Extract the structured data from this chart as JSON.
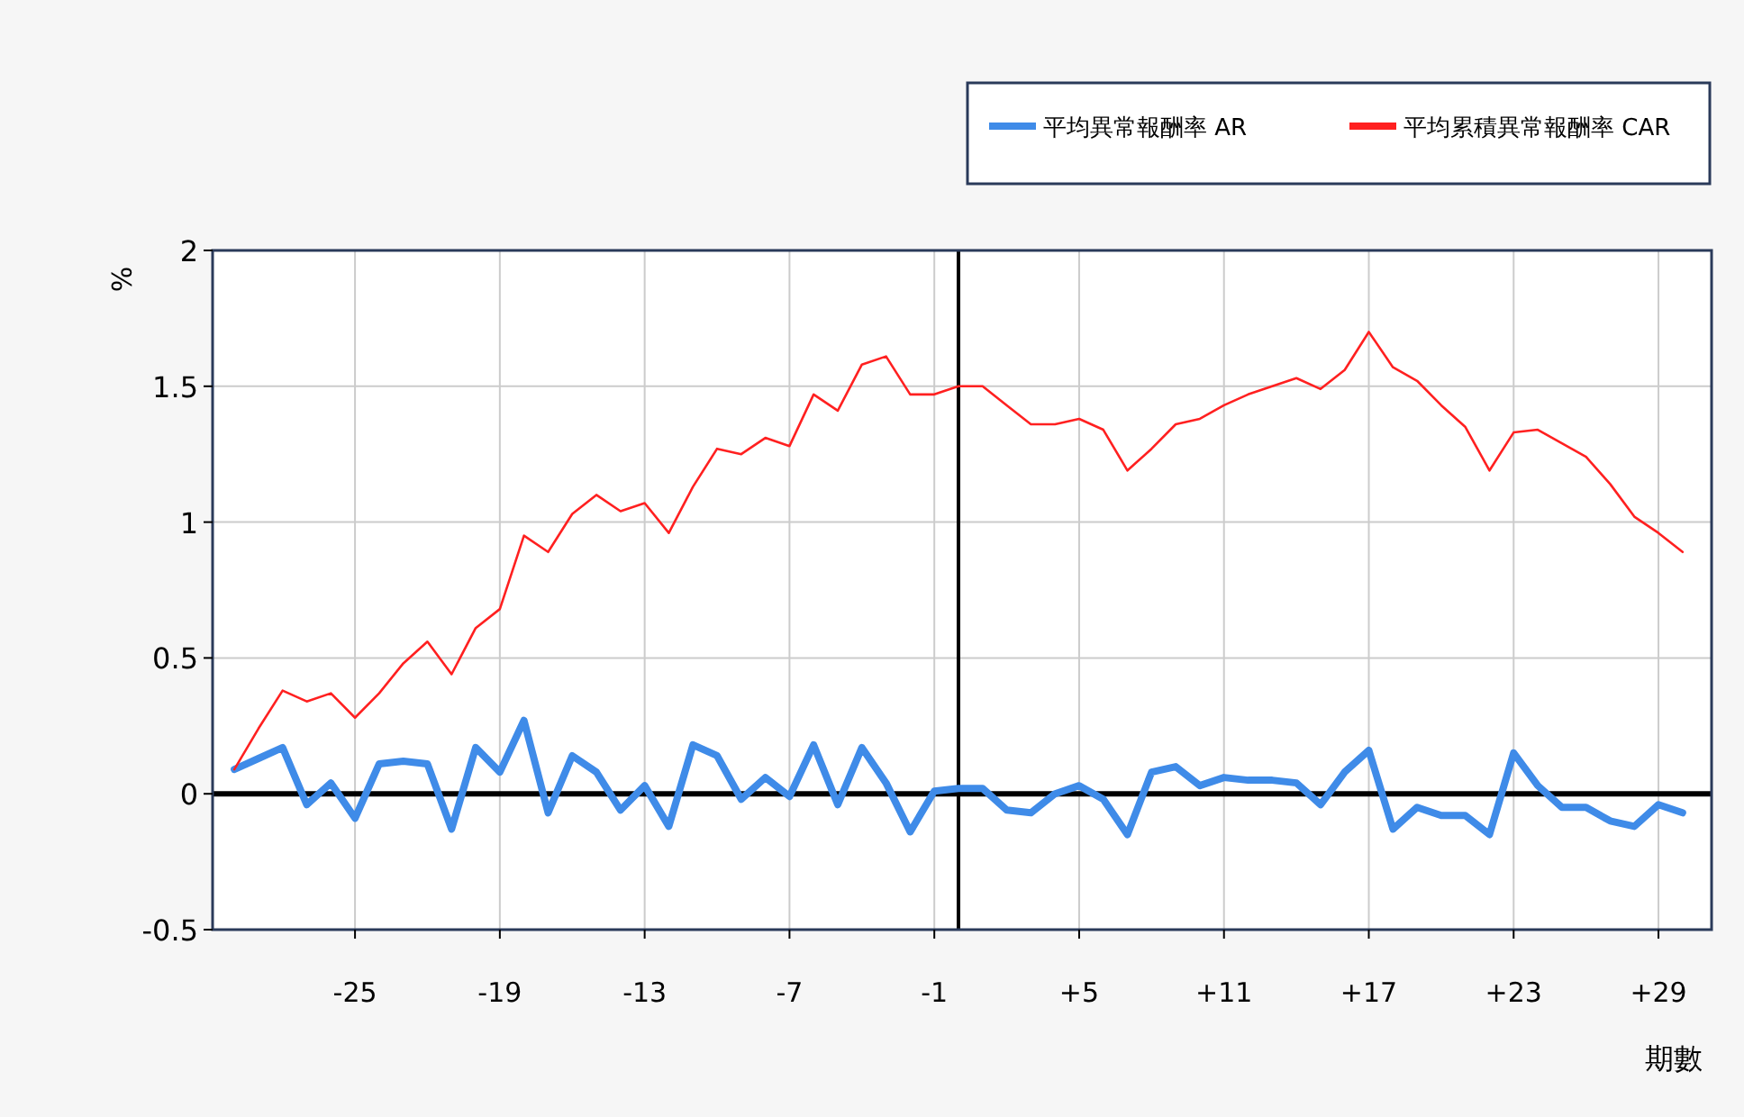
{
  "chart_data": {
    "type": "line",
    "xlabel": "期數",
    "ylabel": "%",
    "x": [
      -30,
      -29,
      -28,
      -27,
      -26,
      -25,
      -24,
      -23,
      -22,
      -21,
      -20,
      -19,
      -18,
      -17,
      -16,
      -15,
      -14,
      -13,
      -12,
      -11,
      -10,
      -9,
      -8,
      -7,
      -6,
      -5,
      -4,
      -3,
      -2,
      -1,
      0,
      1,
      2,
      3,
      4,
      5,
      6,
      7,
      8,
      9,
      10,
      11,
      12,
      13,
      14,
      15,
      16,
      17,
      18,
      19,
      20,
      21,
      22,
      23,
      24,
      25,
      26,
      27,
      28,
      29,
      30
    ],
    "series": [
      {
        "name": "平均異常報酬率 AR",
        "color": "#3f8be8",
        "values": [
          0.09,
          0.13,
          0.17,
          -0.04,
          0.04,
          -0.09,
          0.11,
          0.12,
          0.11,
          -0.13,
          0.17,
          0.08,
          0.27,
          -0.07,
          0.14,
          0.08,
          -0.06,
          0.03,
          -0.12,
          0.18,
          0.14,
          -0.02,
          0.06,
          -0.01,
          0.18,
          -0.04,
          0.17,
          0.04,
          -0.14,
          0.01,
          0.02,
          0.02,
          -0.06,
          -0.07,
          0.0,
          0.03,
          -0.02,
          -0.15,
          0.08,
          0.1,
          0.03,
          0.06,
          0.05,
          0.05,
          0.04,
          -0.04,
          0.08,
          0.16,
          -0.13,
          -0.05,
          -0.08,
          -0.08,
          -0.15,
          0.15,
          0.03,
          -0.05,
          -0.05,
          -0.1,
          -0.12,
          -0.04,
          -0.07
        ]
      },
      {
        "name": "平均累積異常報酬率 CAR",
        "color": "#ff2020",
        "values": [
          0.09,
          0.24,
          0.38,
          0.34,
          0.37,
          0.28,
          0.37,
          0.48,
          0.56,
          0.44,
          0.61,
          0.68,
          0.95,
          0.89,
          1.03,
          1.1,
          1.04,
          1.07,
          0.96,
          1.13,
          1.27,
          1.25,
          1.31,
          1.28,
          1.47,
          1.41,
          1.58,
          1.61,
          1.47,
          1.47,
          1.5,
          1.5,
          1.43,
          1.36,
          1.36,
          1.38,
          1.34,
          1.19,
          1.27,
          1.36,
          1.38,
          1.43,
          1.47,
          1.5,
          1.53,
          1.49,
          1.56,
          1.7,
          1.57,
          1.52,
          1.43,
          1.35,
          1.19,
          1.33,
          1.34,
          1.29,
          1.24,
          1.14,
          1.02,
          0.96,
          0.89
        ]
      }
    ],
    "xlim": [
      -30.9,
      31.2
    ],
    "xticks": [
      -25,
      -19,
      -13,
      -7,
      -1,
      {
        "value": 5,
        "label": "+5"
      },
      {
        "value": 11,
        "label": "+11"
      },
      {
        "value": 17,
        "label": "+17"
      },
      {
        "value": 23,
        "label": "+23"
      },
      {
        "value": 29,
        "label": "+29"
      }
    ],
    "ylim": [
      -0.5,
      2
    ],
    "yticks": [
      -0.5,
      0,
      0.5,
      1,
      1.5,
      2
    ],
    "ref_lines": [
      {
        "axis": "y",
        "value": 0,
        "color": "#000000"
      },
      {
        "axis": "x",
        "value": 0,
        "color": "#000000"
      }
    ],
    "grid": true,
    "legend": "top right",
    "marker": "none"
  }
}
